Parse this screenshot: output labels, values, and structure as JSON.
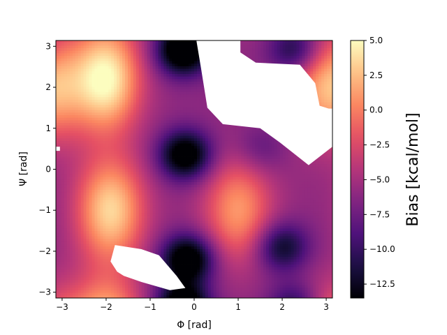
{
  "chart_data": {
    "type": "heatmap",
    "title": "",
    "xlabel": "Φ [rad]",
    "ylabel": "Ψ [rad]",
    "xlim": [
      -3.14159,
      3.14159
    ],
    "ylim": [
      -3.14159,
      3.14159
    ],
    "x_ticks": [
      -3,
      -2,
      -1,
      0,
      1,
      2,
      3
    ],
    "x_tick_labels": [
      "−3",
      "−2",
      "−1",
      "0",
      "1",
      "2",
      "3"
    ],
    "y_ticks": [
      -3,
      -2,
      -1,
      0,
      1,
      2,
      3
    ],
    "y_tick_labels": [
      "−3",
      "−2",
      "−1",
      "0",
      "1",
      "2",
      "3"
    ],
    "colormap": "magma",
    "colorbar": {
      "label": "Bias [kcal/mol]",
      "min": -13.5,
      "max": 5.0,
      "ticks": [
        5.0,
        2.5,
        0.0,
        -2.5,
        -5.0,
        -7.5,
        -10.0,
        -12.5
      ],
      "tick_labels": [
        "5.0",
        "2.5",
        "0.0",
        "−2.5",
        "−5.0",
        "−7.5",
        "−10.0",
        "−12.5"
      ]
    },
    "grid": false,
    "bias_features": {
      "maxima": [
        {
          "phi": -2.0,
          "psi": 2.2,
          "bias": 5.0
        },
        {
          "phi": -1.9,
          "psi": -1.0,
          "bias": 3.5
        },
        {
          "phi": 1.0,
          "psi": -1.0,
          "bias": 1.0
        },
        {
          "phi": 3.0,
          "psi": 2.0,
          "bias": 2.0
        }
      ],
      "minima": [
        {
          "phi": -0.25,
          "psi": 2.9,
          "bias": -13.0
        },
        {
          "phi": -0.2,
          "psi": 0.35,
          "bias": -11.5
        },
        {
          "phi": -0.15,
          "psi": -2.2,
          "bias": -12.0
        },
        {
          "phi": 2.3,
          "psi": 2.9,
          "bias": -8.0
        },
        {
          "phi": 2.0,
          "psi": -1.9,
          "bias": -8.5
        },
        {
          "phi": 1.5,
          "psi": 0.5,
          "bias": -4.5
        }
      ]
    },
    "unsampled_regions": [
      [
        [
          0.05,
          3.14
        ],
        [
          1.05,
          3.14
        ],
        [
          1.05,
          2.85
        ],
        [
          1.4,
          2.6
        ],
        [
          2.4,
          2.55
        ],
        [
          2.75,
          2.1
        ],
        [
          2.85,
          1.55
        ],
        [
          3.14,
          1.45
        ],
        [
          3.14,
          0.55
        ],
        [
          2.6,
          0.1
        ],
        [
          1.95,
          0.65
        ],
        [
          1.5,
          1.0
        ],
        [
          0.65,
          1.1
        ],
        [
          0.3,
          1.5
        ],
        [
          0.15,
          2.5
        ]
      ],
      [
        [
          -1.8,
          -1.85
        ],
        [
          -1.2,
          -1.95
        ],
        [
          -0.8,
          -2.1
        ],
        [
          -0.4,
          -2.6
        ],
        [
          -0.2,
          -2.9
        ],
        [
          -0.55,
          -2.95
        ],
        [
          -1.2,
          -2.75
        ],
        [
          -1.6,
          -2.6
        ],
        [
          -1.75,
          -2.5
        ],
        [
          -1.9,
          -2.25
        ]
      ],
      [
        [
          -3.14,
          0.45
        ],
        [
          -3.05,
          0.45
        ],
        [
          -3.05,
          0.55
        ],
        [
          -3.14,
          0.55
        ]
      ],
      [
        [
          2.95,
          1.4
        ],
        [
          3.14,
          1.4
        ],
        [
          3.14,
          1.48
        ],
        [
          2.95,
          1.48
        ]
      ]
    ]
  }
}
